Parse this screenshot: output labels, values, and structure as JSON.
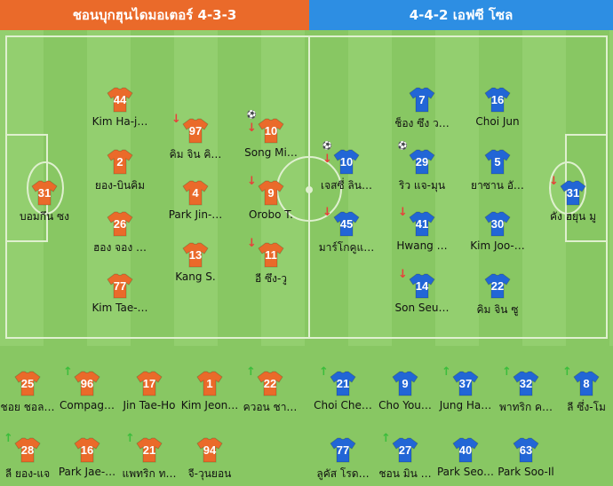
{
  "home": {
    "header": "ชอนบุกฮุนไดมอเตอร์ 4-3-3",
    "color": "#ea6a2a",
    "starters": [
      {
        "num": "44",
        "name": "Kim Ha-j…"
      },
      {
        "num": "97",
        "name": "คิม จิน คิ…"
      },
      {
        "num": "10",
        "name": "Song Mi…"
      },
      {
        "num": "2",
        "name": "ยอง-บินคิม"
      },
      {
        "num": "31",
        "name": "บอมกึน ซง"
      },
      {
        "num": "4",
        "name": "Park Jin-…"
      },
      {
        "num": "9",
        "name": "Orobo T."
      },
      {
        "num": "26",
        "name": "ฮอง จอง …"
      },
      {
        "num": "13",
        "name": "Kang S."
      },
      {
        "num": "11",
        "name": "อี ซึง-วู"
      },
      {
        "num": "77",
        "name": "Kim Tae-…"
      }
    ],
    "subs": [
      {
        "num": "25",
        "name": "ชอย ชอล…"
      },
      {
        "num": "96",
        "name": "Compag…"
      },
      {
        "num": "17",
        "name": "Jin Tae-Ho"
      },
      {
        "num": "1",
        "name": "Kim Jeon…"
      },
      {
        "num": "22",
        "name": "ควอน ชา…"
      },
      {
        "num": "28",
        "name": "ลี ยอง-แจ"
      },
      {
        "num": "16",
        "name": "Park Jae-…"
      },
      {
        "num": "21",
        "name": "แพทริก ท…"
      },
      {
        "num": "94",
        "name": "จี-วุนยอน"
      }
    ]
  },
  "away": {
    "header": "4-4-2 เอฟซี โซล",
    "color": "#2266d6",
    "starters": [
      {
        "num": "7",
        "name": "ช็อง ซึง ว…"
      },
      {
        "num": "16",
        "name": "Choi Jun"
      },
      {
        "num": "10",
        "name": "เจสซี่ ลิน…"
      },
      {
        "num": "29",
        "name": "ริว แจ-มุน"
      },
      {
        "num": "5",
        "name": "ยาซาน อั…"
      },
      {
        "num": "31",
        "name": "คัง ฮยุน มู"
      },
      {
        "num": "45",
        "name": "มาร์โกคูแ…"
      },
      {
        "num": "41",
        "name": "Hwang …"
      },
      {
        "num": "30",
        "name": "Kim Joo-…"
      },
      {
        "num": "14",
        "name": "Son Seu…"
      },
      {
        "num": "22",
        "name": "คิม จิน ซู"
      }
    ],
    "subs": [
      {
        "num": "21",
        "name": "Choi Che…"
      },
      {
        "num": "9",
        "name": "Cho You…"
      },
      {
        "num": "37",
        "name": "Jung Ha…"
      },
      {
        "num": "32",
        "name": "พาทริก ค…"
      },
      {
        "num": "8",
        "name": "ลี ซึ่ง-โม"
      },
      {
        "num": "77",
        "name": "ลูคัส โรด…"
      },
      {
        "num": "27",
        "name": "ชอน มิน …"
      },
      {
        "num": "40",
        "name": "Park Seo…"
      },
      {
        "num": "63",
        "name": "Park Soo-Il"
      }
    ]
  },
  "icons": {
    "substitution_out": "down-arrow-icon",
    "substitution_in": "up-arrow-icon",
    "goal": "football-icon",
    "own_goal": "own-goal-football-icon"
  }
}
